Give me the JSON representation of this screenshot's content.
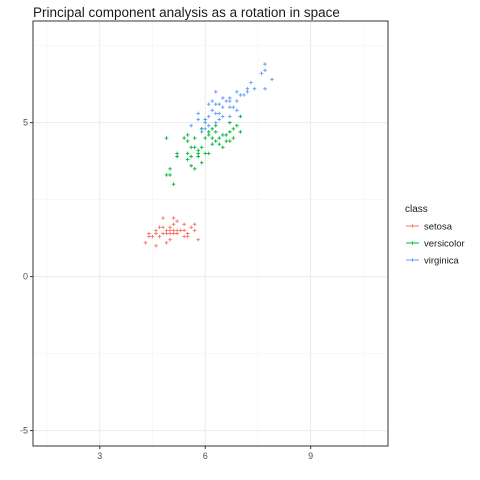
{
  "chart_data": {
    "type": "scatter",
    "title": "Principal component analysis as a rotation in space",
    "xlabel": "",
    "ylabel": "",
    "xlim": [
      1.1,
      11.2
    ],
    "ylim": [
      -5.5,
      8.3
    ],
    "x_ticks": [
      3,
      6,
      9
    ],
    "y_ticks": [
      -5,
      0,
      5
    ],
    "grid": true,
    "legend": {
      "title": "class",
      "position": "right"
    },
    "series": [
      {
        "name": "setosa",
        "color": "#F8766D",
        "points": [
          [
            4.3,
            1.1
          ],
          [
            4.4,
            1.3
          ],
          [
            4.4,
            1.4
          ],
          [
            4.5,
            1.3
          ],
          [
            4.6,
            1.4
          ],
          [
            4.6,
            1.5
          ],
          [
            4.6,
            1.0
          ],
          [
            4.7,
            1.3
          ],
          [
            4.7,
            1.6
          ],
          [
            4.8,
            1.4
          ],
          [
            4.8,
            1.6
          ],
          [
            4.8,
            1.9
          ],
          [
            4.9,
            1.4
          ],
          [
            4.9,
            1.5
          ],
          [
            5.0,
            1.4
          ],
          [
            5.0,
            1.5
          ],
          [
            5.0,
            1.6
          ],
          [
            5.0,
            1.2
          ],
          [
            5.1,
            1.4
          ],
          [
            5.1,
            1.5
          ],
          [
            5.1,
            1.7
          ],
          [
            5.1,
            1.9
          ],
          [
            5.2,
            1.5
          ],
          [
            5.2,
            1.4
          ],
          [
            5.3,
            1.5
          ],
          [
            5.4,
            1.7
          ],
          [
            5.4,
            1.3
          ],
          [
            5.4,
            1.5
          ],
          [
            5.5,
            1.4
          ],
          [
            5.5,
            1.3
          ],
          [
            5.7,
            1.5
          ],
          [
            5.7,
            1.7
          ],
          [
            5.8,
            1.2
          ],
          [
            5.2,
            1.8
          ],
          [
            4.9,
            1.1
          ],
          [
            5.6,
            1.6
          ]
        ]
      },
      {
        "name": "versicolor",
        "color": "#00BA38",
        "points": [
          [
            4.9,
            3.3
          ],
          [
            5.0,
            3.5
          ],
          [
            5.0,
            3.3
          ],
          [
            5.1,
            3.0
          ],
          [
            5.2,
            3.9
          ],
          [
            4.9,
            4.5
          ],
          [
            5.4,
            4.5
          ],
          [
            5.5,
            4.0
          ],
          [
            5.5,
            4.4
          ],
          [
            5.5,
            3.8
          ],
          [
            5.6,
            3.6
          ],
          [
            5.6,
            4.2
          ],
          [
            5.6,
            3.9
          ],
          [
            5.7,
            3.5
          ],
          [
            5.7,
            4.2
          ],
          [
            5.7,
            4.5
          ],
          [
            5.8,
            4.0
          ],
          [
            5.8,
            3.9
          ],
          [
            5.9,
            4.2
          ],
          [
            5.9,
            4.8
          ],
          [
            6.0,
            4.0
          ],
          [
            6.0,
            4.5
          ],
          [
            6.0,
            5.1
          ],
          [
            6.1,
            4.0
          ],
          [
            6.1,
            4.7
          ],
          [
            6.2,
            4.3
          ],
          [
            6.2,
            4.5
          ],
          [
            6.3,
            4.4
          ],
          [
            6.3,
            4.7
          ],
          [
            6.3,
            4.9
          ],
          [
            6.4,
            4.3
          ],
          [
            6.4,
            4.5
          ],
          [
            6.5,
            4.6
          ],
          [
            6.6,
            4.4
          ],
          [
            6.6,
            4.6
          ],
          [
            6.7,
            4.4
          ],
          [
            6.7,
            4.7
          ],
          [
            6.7,
            5.0
          ],
          [
            6.8,
            4.8
          ],
          [
            6.9,
            4.9
          ],
          [
            7.0,
            4.7
          ],
          [
            5.8,
            4.1
          ],
          [
            6.1,
            4.6
          ],
          [
            6.5,
            4.2
          ],
          [
            5.2,
            4.0
          ],
          [
            5.5,
            4.6
          ],
          [
            6.2,
            4.8
          ],
          [
            5.9,
            3.7
          ],
          [
            6.8,
            4.5
          ],
          [
            7.0,
            5.2
          ]
        ]
      },
      {
        "name": "virginica",
        "color": "#619CFF",
        "points": [
          [
            5.8,
            5.1
          ],
          [
            6.0,
            4.8
          ],
          [
            6.0,
            5.0
          ],
          [
            6.1,
            4.9
          ],
          [
            6.1,
            5.6
          ],
          [
            6.2,
            5.4
          ],
          [
            6.3,
            5.0
          ],
          [
            6.3,
            5.6
          ],
          [
            6.3,
            6.0
          ],
          [
            6.4,
            5.3
          ],
          [
            6.4,
            5.6
          ],
          [
            6.5,
            5.2
          ],
          [
            6.5,
            5.5
          ],
          [
            6.6,
            5.7
          ],
          [
            6.7,
            5.2
          ],
          [
            6.7,
            5.7
          ],
          [
            6.7,
            5.8
          ],
          [
            6.8,
            5.5
          ],
          [
            6.9,
            5.4
          ],
          [
            6.9,
            5.7
          ],
          [
            7.0,
            5.9
          ],
          [
            7.1,
            5.9
          ],
          [
            7.2,
            6.0
          ],
          [
            7.2,
            6.1
          ],
          [
            7.3,
            6.3
          ],
          [
            7.6,
            6.6
          ],
          [
            7.7,
            6.7
          ],
          [
            7.7,
            6.9
          ],
          [
            7.7,
            6.1
          ],
          [
            7.9,
            6.4
          ],
          [
            5.8,
            5.3
          ],
          [
            6.0,
            5.1
          ],
          [
            6.2,
            5.7
          ],
          [
            5.9,
            4.7
          ],
          [
            6.5,
            5.8
          ],
          [
            6.3,
            5.3
          ],
          [
            6.4,
            5.1
          ],
          [
            6.7,
            5.5
          ],
          [
            6.9,
            6.0
          ],
          [
            7.4,
            6.1
          ],
          [
            5.6,
            4.9
          ],
          [
            6.1,
            5.2
          ]
        ]
      }
    ]
  }
}
